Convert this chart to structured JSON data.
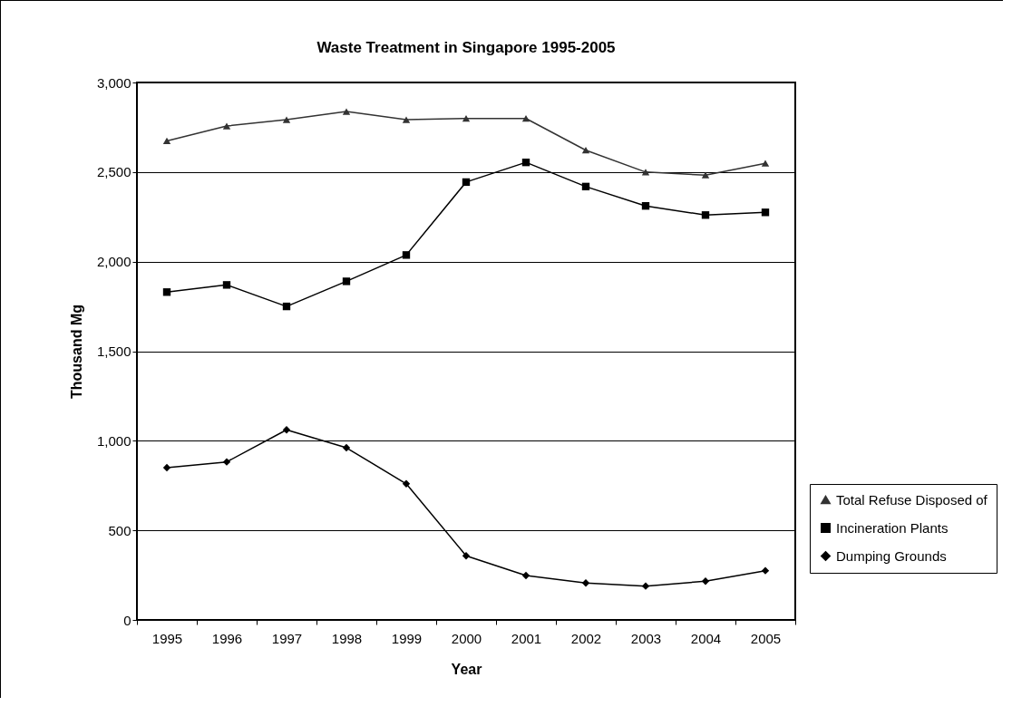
{
  "chart_data": {
    "type": "line",
    "title": "Waste Treatment in Singapore 1995-2005",
    "xlabel": "Year",
    "ylabel": "Thousand Mg",
    "categories": [
      "1995",
      "1996",
      "1997",
      "1998",
      "1999",
      "2000",
      "2001",
      "2002",
      "2003",
      "2004",
      "2005"
    ],
    "series": [
      {
        "name": "Total Refuse Disposed of",
        "color": "#333333",
        "marker": "triangle",
        "values": [
          2674,
          2757,
          2792,
          2838,
          2792,
          2799,
          2799,
          2622,
          2500,
          2483,
          2549
        ]
      },
      {
        "name": "Incineration Plants",
        "color": "#000000",
        "marker": "square",
        "values": [
          1830,
          1870,
          1750,
          1890,
          2037,
          2444,
          2554,
          2419,
          2311,
          2260,
          2275
        ]
      },
      {
        "name": "Dumping Grounds",
        "color": "#000000",
        "marker": "diamond",
        "values": [
          850,
          882,
          1061,
          961,
          760,
          358,
          248,
          206,
          189,
          216,
          275
        ]
      }
    ],
    "ylim": [
      0,
      3000
    ],
    "yticks": [
      0,
      500,
      {
        "value": 1000,
        "label": "1,000"
      },
      {
        "value": 1500,
        "label": "1,500"
      },
      {
        "value": 2000,
        "label": "2,000"
      },
      {
        "value": 2500,
        "label": "2,500"
      },
      {
        "value": 3000,
        "label": "3,000"
      }
    ],
    "grid": "y",
    "legend": "right",
    "line_style": "solid"
  }
}
